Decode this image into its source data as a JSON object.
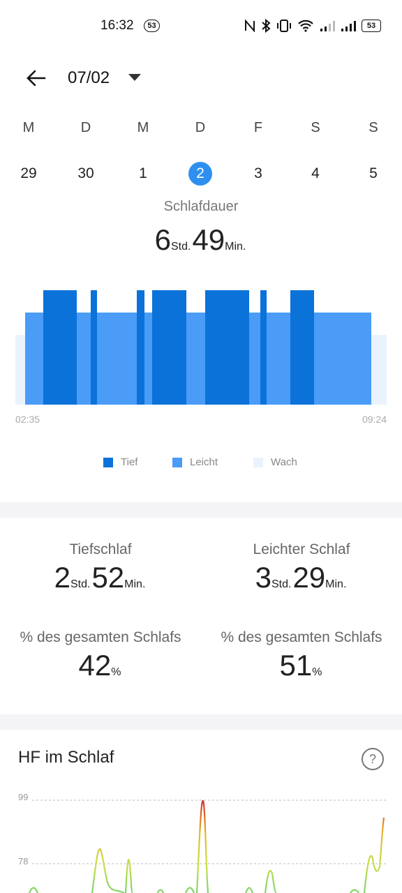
{
  "status_bar": {
    "time": "16:32",
    "notif_badge": "53",
    "battery": "53"
  },
  "header": {
    "date": "07/02"
  },
  "week": {
    "weekdays": [
      "M",
      "D",
      "M",
      "D",
      "F",
      "S",
      "S"
    ],
    "days": [
      "29",
      "30",
      "1",
      "2",
      "3",
      "4",
      "5"
    ],
    "selected_index": 3,
    "selected_color": "#2e8ff0"
  },
  "sleep_duration": {
    "label": "Schlafdauer",
    "hours": "6",
    "hours_unit": "Std.",
    "minutes": "49",
    "minutes_unit": "Min."
  },
  "sleep_chart": {
    "start_time": "02:35",
    "end_time": "09:24",
    "colors": {
      "deep": "#0b72d9",
      "light": "#4a9cf7",
      "awake": "#eaf3fd"
    },
    "legend": {
      "deep": "Tief",
      "light": "Leicht",
      "awake": "Wach"
    }
  },
  "stats": {
    "deep": {
      "label": "Tiefschlaf",
      "hours": "2",
      "minutes": "52",
      "hours_unit": "Std.",
      "minutes_unit": "Min."
    },
    "light": {
      "label": "Leichter Schlaf",
      "hours": "3",
      "minutes": "29",
      "hours_unit": "Std.",
      "minutes_unit": "Min."
    },
    "deep_pct": {
      "label": "% des gesamten Schlafs",
      "value": "42",
      "unit": "%"
    },
    "light_pct": {
      "label": "% des gesamten Schlafs",
      "value": "51",
      "unit": "%"
    }
  },
  "heart_rate": {
    "title": "HF im Schlaf",
    "help_icon": "question-mark-icon",
    "ticks": [
      "99",
      "78"
    ]
  }
}
